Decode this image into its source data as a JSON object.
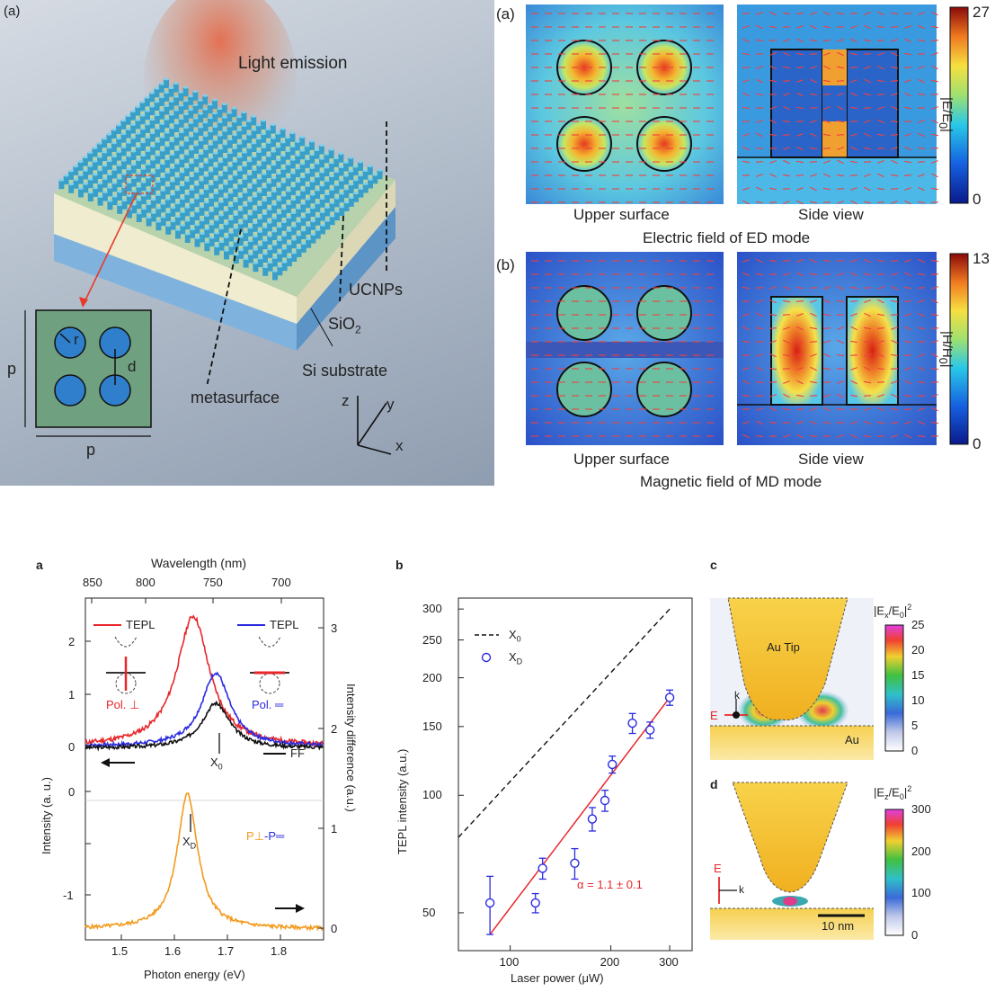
{
  "top_left": {
    "panel_label": "(a)",
    "light_emission": "Light emission",
    "ucnps": "UCNPs",
    "sio2": "SiO",
    "sio2_sub": "2",
    "si_substrate": "Si substrate",
    "metasurface": "metasurface",
    "axis_z": "z",
    "axis_y": "y",
    "axis_x": "x",
    "inset_p_left": "p",
    "inset_p_bottom": "p",
    "inset_r": "r",
    "inset_d": "d"
  },
  "top_right": {
    "panel_a": "(a)",
    "panel_b": "(b)",
    "ed_upper": "Upper surface",
    "ed_side": "Side view",
    "ed_caption": "Electric field of ED mode",
    "md_upper": "Upper surface",
    "md_side": "Side view",
    "md_caption": "Magnetic field of MD mode",
    "cbar_e_max": "27",
    "cbar_e_min": "0",
    "cbar_e_label": "|E/E",
    "cbar_e_label_sub": "0",
    "cbar_h_max": "13",
    "cbar_h_min": "0",
    "cbar_h_label": "|H/H",
    "cbar_h_label_sub": "0"
  },
  "panel_a": {
    "label": "a",
    "top_axis_title": "Wavelength (nm)",
    "top_ticks": [
      "850",
      "800",
      "750",
      "700"
    ],
    "xlabel": "Photon energy (eV)",
    "x_ticks": [
      "1.5",
      "1.6",
      "1.7",
      "1.8"
    ],
    "ylabel_left": "Intensity (a. u.)",
    "ylabel_right": "Intensity difference (a.u.)",
    "left_ticks_upper": [
      "2",
      "1",
      "0"
    ],
    "left_ticks_lower": [
      "0",
      "-1"
    ],
    "right_ticks": [
      "3",
      "2",
      "1",
      "0"
    ],
    "legend_tepl_perp": "TEPL",
    "legend_tepl_par": "TEPL",
    "legend_ff": "FF",
    "pol_perp": "Pol. ⊥",
    "pol_par": "Pol. ═",
    "x0": "X",
    "x0_sub": "0",
    "xd": "X",
    "xd_sub": "D",
    "diff_label_a": "P⊥",
    "diff_label_b": "-P═",
    "colors": {
      "red": "#e8262a",
      "blue": "#2b2be0",
      "black": "#111111",
      "orange": "#f39a1c"
    }
  },
  "panel_b": {
    "label": "b",
    "ylabel": "TEPL intensity (a.u.)",
    "xlabel": "Laser power (μW)",
    "y_ticks": [
      "300",
      "250",
      "200",
      "150",
      "100",
      "50"
    ],
    "x_ticks": [
      "100",
      "200",
      "300"
    ],
    "legend_x0": "X",
    "legend_x0_sub": "0",
    "legend_xd": "X",
    "legend_xd_sub": "D",
    "alpha": "α = 1.1 ± 0.1"
  },
  "panel_c": {
    "label": "c",
    "tip": "Au Tip",
    "au": "Au",
    "cbar_label": "|E",
    "cbar_label_sub": "x",
    "cbar_label_mid": "/E",
    "cbar_label_sub2": "0",
    "cbar_label_end": "|",
    "cbar_label_sup": "2",
    "ticks": [
      "25",
      "20",
      "15",
      "10",
      "5",
      "0"
    ],
    "e_vec": "E",
    "k_vec": "k"
  },
  "panel_d": {
    "label": "d",
    "cbar_label": "|E",
    "cbar_label_sub": "z",
    "cbar_label_mid": "/E",
    "cbar_label_sub2": "0",
    "cbar_label_end": "|",
    "cbar_label_sup": "2",
    "ticks": [
      "300",
      "200",
      "100",
      "0"
    ],
    "scale": "10 nm",
    "e_vec": "E",
    "k_vec": "k"
  },
  "chart_data": [
    {
      "type": "line",
      "panel": "a",
      "x_axis": "Photon energy (eV)",
      "xlim": [
        1.44,
        1.86
      ],
      "series": [
        {
          "name": "TEPL",
          "color": "#e8262a",
          "peak_x": 1.63,
          "peak_height": 2.35
        },
        {
          "name": "TEPL",
          "color": "#2b2be0",
          "peak_x": 1.67,
          "peak_height": 1.6
        },
        {
          "name": "FF",
          "color": "#111111",
          "peak_x": 1.67,
          "peak_height": 0.95
        },
        {
          "name": "P⊥-P═",
          "color": "#f39a1c",
          "peak_x": 1.62,
          "peak_height": 1.3
        }
      ]
    },
    {
      "type": "scatter",
      "panel": "b",
      "xlabel": "Laser power (μW)",
      "ylabel": "TEPL intensity (a.u.)",
      "log_x": true,
      "log_y": true,
      "xlim": [
        70,
        350
      ],
      "ylim": [
        40,
        320
      ],
      "points": [
        {
          "x": 87,
          "y": 53,
          "err": 9
        },
        {
          "x": 119,
          "y": 53,
          "err": 3
        },
        {
          "x": 125,
          "y": 65,
          "err": 4
        },
        {
          "x": 156,
          "y": 67,
          "err": 6
        },
        {
          "x": 176,
          "y": 87,
          "err": 6
        },
        {
          "x": 192,
          "y": 97,
          "err": 6
        },
        {
          "x": 202,
          "y": 120,
          "err": 6
        },
        {
          "x": 232,
          "y": 153,
          "err": 9
        },
        {
          "x": 262,
          "y": 147,
          "err": 7
        },
        {
          "x": 300,
          "y": 178,
          "err": 8
        }
      ],
      "fit": {
        "from": [
          87,
          44
        ],
        "to": [
          300,
          178
        ],
        "color": "#e8262a"
      },
      "reference_line": {
        "from": [
          70,
          78
        ],
        "to": [
          300,
          300
        ],
        "style": "dashed"
      }
    }
  ]
}
